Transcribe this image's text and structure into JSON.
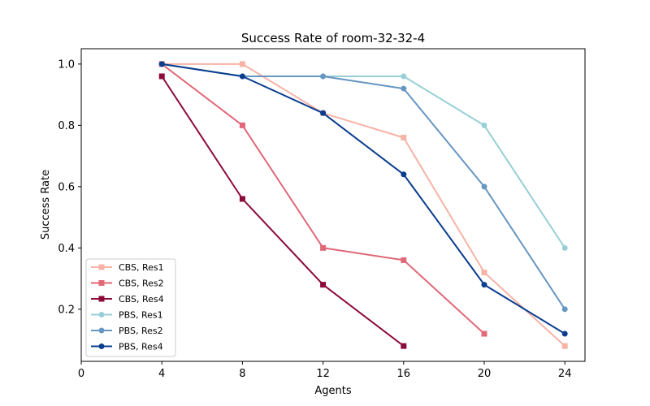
{
  "chart_data": {
    "type": "line",
    "title": "Success Rate of room-32-32-4",
    "xlabel": "Agents",
    "ylabel": "Success Rate",
    "xlim": [
      0,
      25
    ],
    "ylim": [
      0.03,
      1.05
    ],
    "xticks": [
      0,
      4,
      8,
      12,
      16,
      20,
      24
    ],
    "yticks": [
      0.2,
      0.4,
      0.6,
      0.8,
      1.0
    ],
    "grid": false,
    "legend_position": "lower-left",
    "series": [
      {
        "name": "CBS, Res1",
        "marker": "square",
        "color": "#f7b3a6",
        "x": [
          4,
          8,
          12,
          16,
          20,
          24
        ],
        "y": [
          1.0,
          1.0,
          0.84,
          0.76,
          0.32,
          0.08
        ]
      },
      {
        "name": "CBS, Res2",
        "marker": "square",
        "color": "#e06878",
        "x": [
          4,
          8,
          12,
          16,
          20
        ],
        "y": [
          1.0,
          0.8,
          0.4,
          0.36,
          0.12
        ]
      },
      {
        "name": "CBS, Res4",
        "marker": "square",
        "color": "#8b0a3c",
        "x": [
          4,
          8,
          12,
          16
        ],
        "y": [
          0.96,
          0.56,
          0.28,
          0.08
        ]
      },
      {
        "name": "PBS, Res1",
        "marker": "circle",
        "color": "#98cfd6",
        "x": [
          4,
          8,
          12,
          16,
          20,
          24
        ],
        "y": [
          1.0,
          0.96,
          0.96,
          0.96,
          0.8,
          0.4
        ]
      },
      {
        "name": "PBS, Res2",
        "marker": "circle",
        "color": "#6696c2",
        "x": [
          4,
          8,
          12,
          16,
          20,
          24
        ],
        "y": [
          1.0,
          0.96,
          0.96,
          0.92,
          0.6,
          0.2
        ]
      },
      {
        "name": "PBS, Res4",
        "marker": "circle",
        "color": "#0a3d8f",
        "x": [
          4,
          8,
          12,
          16,
          20,
          24
        ],
        "y": [
          1.0,
          0.96,
          0.84,
          0.64,
          0.28,
          0.12
        ]
      }
    ]
  }
}
